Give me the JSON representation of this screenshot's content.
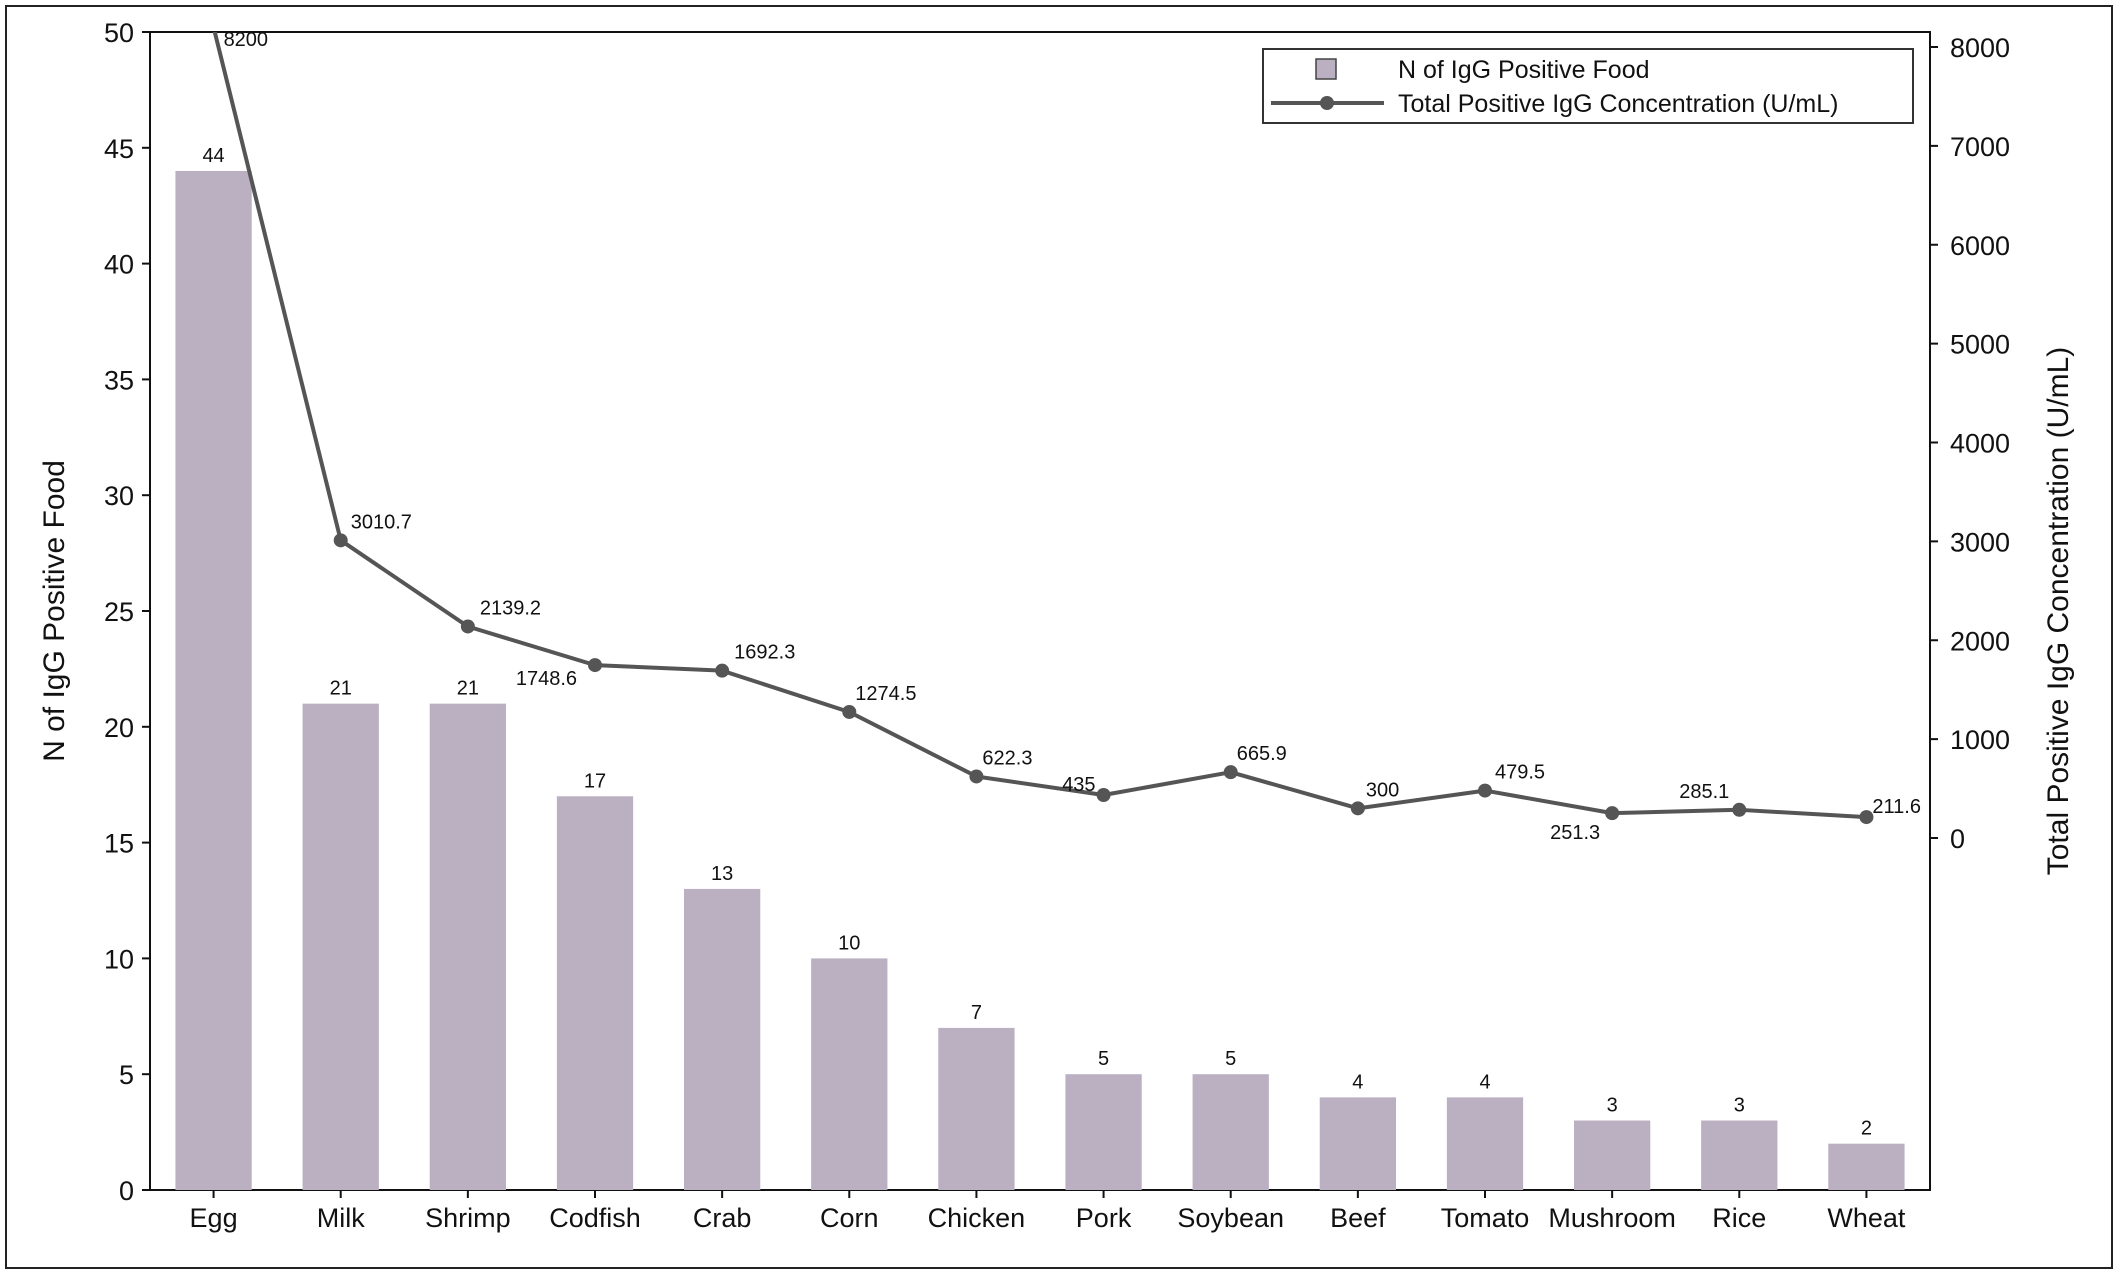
{
  "chart_data": {
    "type": "bar",
    "categories": [
      "Egg",
      "Milk",
      "Shrimp",
      "Codfish",
      "Crab",
      "Corn",
      "Chicken",
      "Pork",
      "Soybean",
      "Beef",
      "Tomato",
      "Mushroom",
      "Rice",
      "Wheat"
    ],
    "series": [
      {
        "name": "N of IgG Positive Food",
        "type": "bar",
        "axis": "left",
        "values": [
          44,
          21,
          21,
          17,
          13,
          10,
          7,
          5,
          5,
          4,
          4,
          3,
          3,
          2
        ],
        "labels": [
          "44",
          "21",
          "21",
          "17",
          "13",
          "10",
          "7",
          "5",
          "5",
          "4",
          "4",
          "3",
          "3",
          "2"
        ]
      },
      {
        "name": "Total Positive IgG Concentration (U/mL)",
        "type": "line",
        "axis": "right",
        "values": [
          8200,
          3010.7,
          2139.2,
          1748.6,
          1692.3,
          1274.5,
          622.3,
          435,
          665.9,
          300,
          479.5,
          251.3,
          285.1,
          211.6
        ],
        "labels": [
          "8200",
          "3010.7",
          "2139.2",
          "1748.6",
          "1692.3",
          "1274.5",
          "622.3",
          "435",
          "665.9",
          "300",
          "479.5",
          "251.3",
          "285.1",
          "211.6"
        ]
      }
    ],
    "ylabel": "N of IgG Positive Food",
    "y2label": "Total Positive IgG Concentration (U/mL)",
    "xlabel": "",
    "ylim": [
      0,
      50
    ],
    "y2lim": [
      0,
      8000
    ],
    "yticks": [
      "0",
      "5",
      "10",
      "15",
      "20",
      "25",
      "30",
      "35",
      "40",
      "45",
      "50"
    ],
    "y2ticks": [
      "0",
      "1000",
      "2000",
      "3000",
      "4000",
      "5000",
      "6000",
      "7000",
      "8000"
    ],
    "legend_position": "top-right",
    "grid": false,
    "colors": {
      "bar": "#bbb0c1",
      "line": "#555555",
      "axis": "#111111"
    }
  }
}
